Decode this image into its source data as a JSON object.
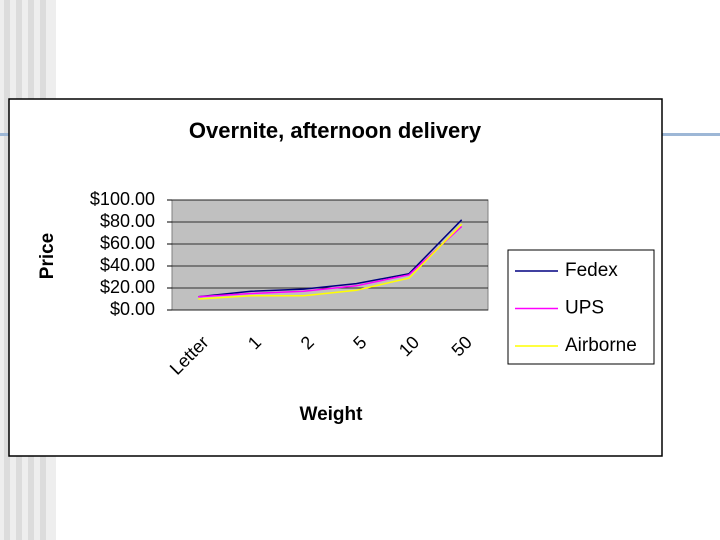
{
  "chart_data": {
    "type": "line",
    "title": "Overnite, afternoon delivery",
    "x_label": "Weight",
    "y_label": "Price",
    "categories": [
      "Letter",
      "1",
      "2",
      "5",
      "10",
      "50"
    ],
    "series": [
      {
        "name": "Fedex",
        "color": "#000080",
        "values": [
          12,
          17,
          19,
          24,
          33,
          82
        ]
      },
      {
        "name": "UPS",
        "color": "#ff00ff",
        "values": [
          12,
          15,
          17,
          22,
          32,
          76
        ]
      },
      {
        "name": "Airborne",
        "color": "#ffff00",
        "values": [
          10,
          13,
          13,
          18,
          29,
          78
        ]
      }
    ],
    "ylim": [
      0,
      100
    ],
    "yticks": [
      {
        "value": 0,
        "label": "$0.00"
      },
      {
        "value": 20,
        "label": "$20.00"
      },
      {
        "value": 40,
        "label": "$40.00"
      },
      {
        "value": 60,
        "label": "$60.00"
      },
      {
        "value": 80,
        "label": "$80.00"
      },
      {
        "value": 100,
        "label": "$100.00"
      }
    ],
    "grid": true,
    "legend": "right"
  }
}
